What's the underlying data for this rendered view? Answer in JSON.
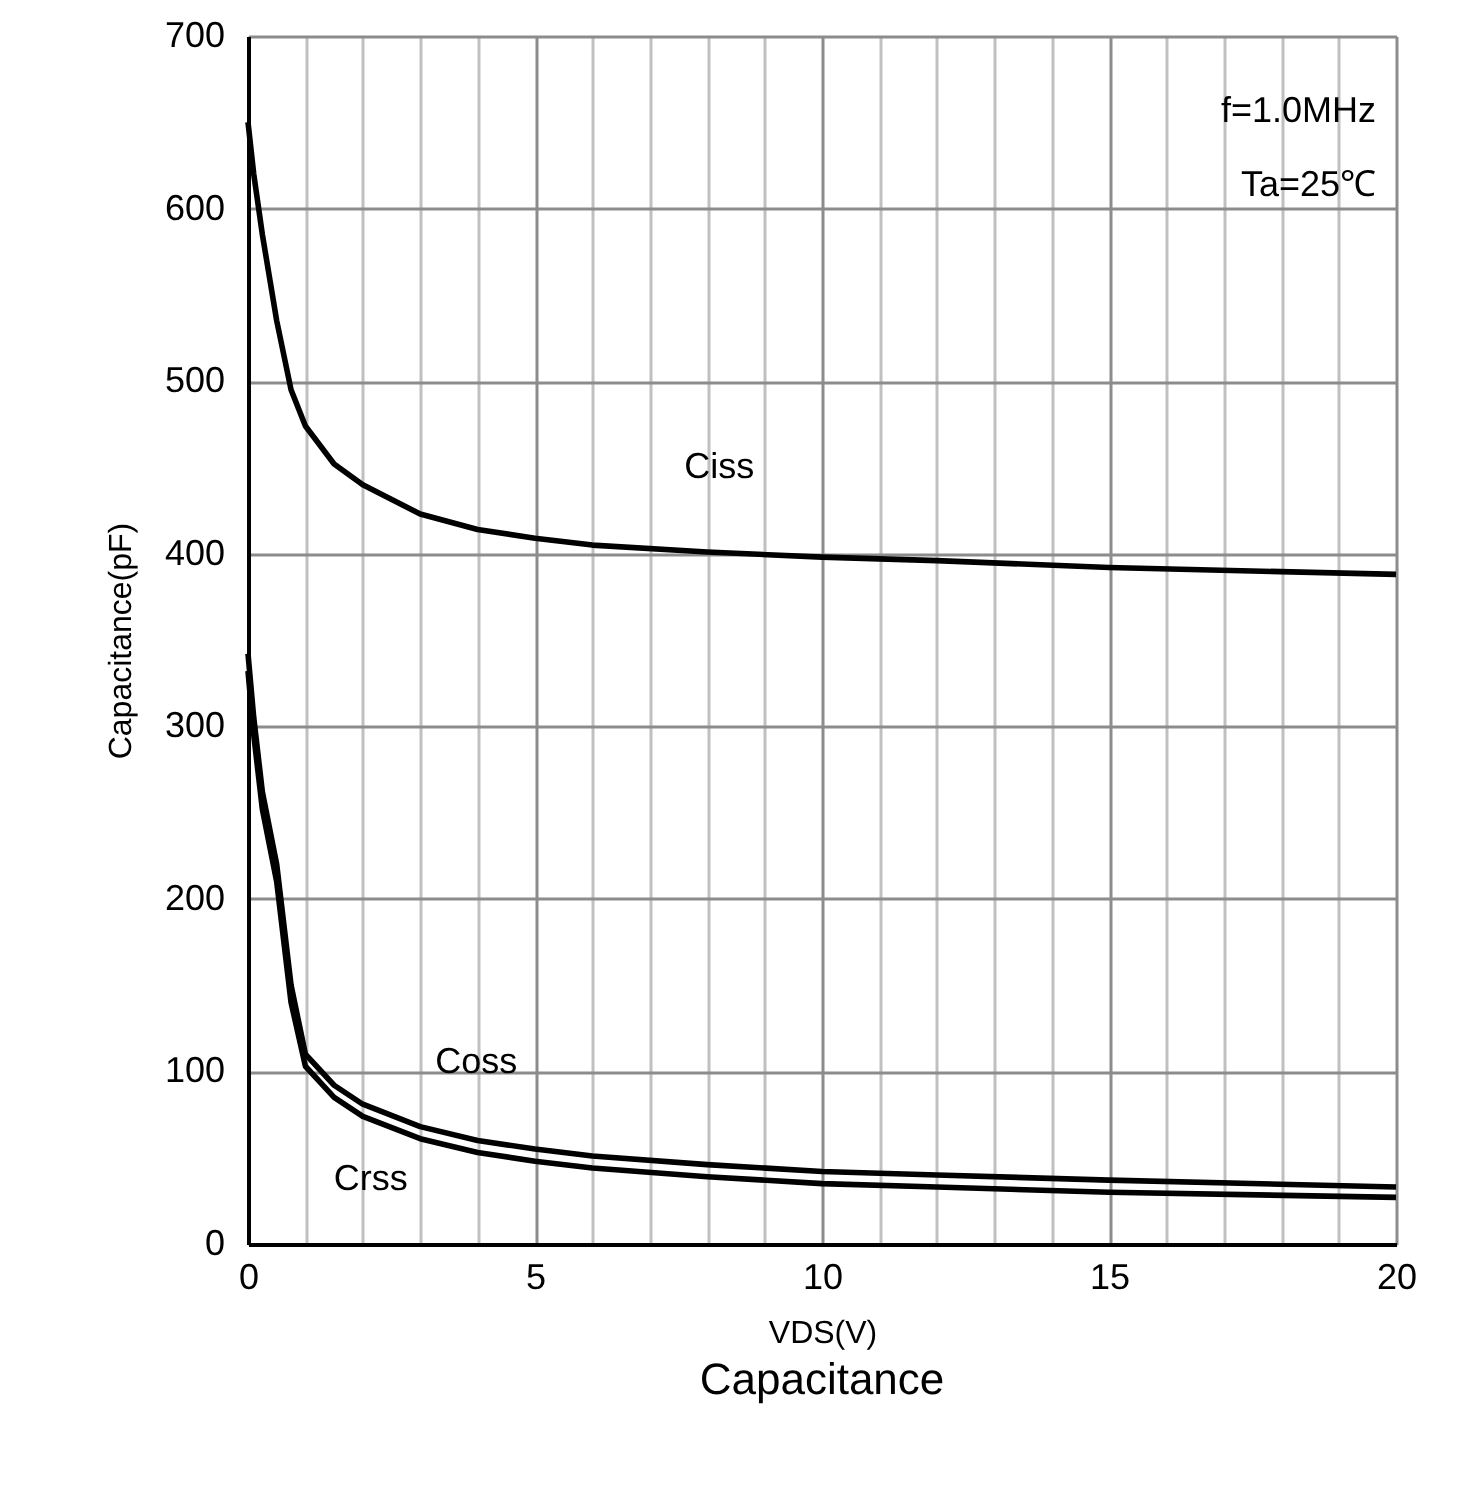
{
  "chart_data": {
    "type": "line",
    "title": "Capacitance",
    "xlabel": "VDS(V)",
    "ylabel": "Capacitance(pF)",
    "x": [
      0,
      0.1,
      0.25,
      0.5,
      0.75,
      1,
      1.5,
      2,
      3,
      4,
      5,
      6,
      8,
      10,
      12,
      15,
      20
    ],
    "series": [
      {
        "name": "Ciss",
        "color": "#000000",
        "values": [
          650,
          620,
          585,
          535,
          495,
          474,
          452,
          440,
          423,
          414,
          409,
          405,
          401,
          398,
          396,
          392,
          388
        ]
      },
      {
        "name": "Coss",
        "color": "#000000",
        "values": [
          342,
          305,
          262,
          220,
          150,
          110,
          92,
          81,
          68,
          60,
          55,
          51,
          46,
          42,
          40,
          37,
          33
        ]
      },
      {
        "name": "Crss",
        "color": "#000000",
        "values": [
          332,
          295,
          252,
          210,
          140,
          103,
          85,
          74,
          61,
          53,
          48,
          44,
          39,
          35,
          33,
          30,
          27
        ]
      }
    ],
    "xlim": [
      0,
      20
    ],
    "ylim": [
      0,
      700
    ],
    "xticks": [
      0,
      {
        "value": 1,
        "label": null
      },
      {
        "value": 2,
        "label": null
      },
      {
        "value": 3,
        "label": null
      },
      {
        "value": 4,
        "label": null
      },
      5,
      {
        "value": 6,
        "label": null
      },
      {
        "value": 7,
        "label": null
      },
      {
        "value": 8,
        "label": null
      },
      {
        "value": 9,
        "label": null
      },
      10,
      {
        "value": 11,
        "label": null
      },
      {
        "value": 12,
        "label": null
      },
      {
        "value": 13,
        "label": null
      },
      {
        "value": 14,
        "label": null
      },
      15,
      {
        "value": 16,
        "label": null
      },
      {
        "value": 17,
        "label": null
      },
      {
        "value": 18,
        "label": null
      },
      {
        "value": 19,
        "label": null
      },
      20
    ],
    "yticks": [
      0,
      100,
      200,
      300,
      400,
      500,
      600,
      700
    ],
    "annotations": [
      "f=1.0MHz",
      "Ta=25℃"
    ],
    "grid": true,
    "legend": false,
    "marker": "none",
    "line_style": "solid"
  }
}
